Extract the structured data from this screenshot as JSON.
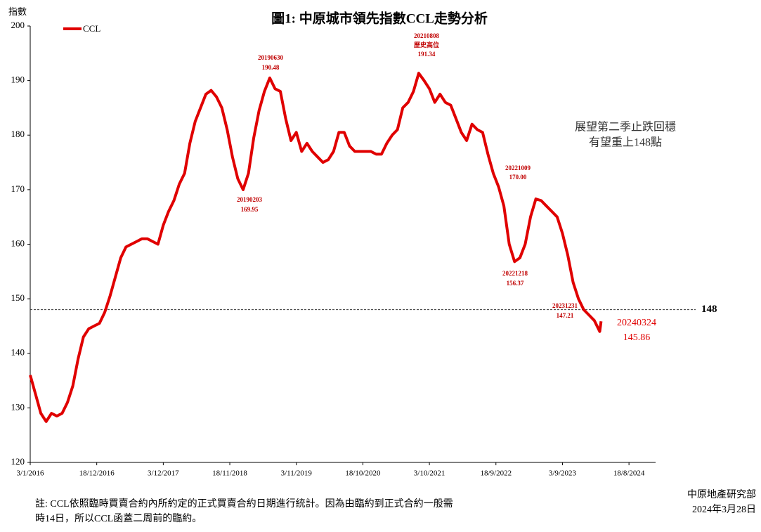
{
  "chart_data": {
    "type": "line",
    "title": "圖1: 中原城市領先指數CCL走勢分析",
    "y_label": "指數",
    "x": [
      "3/1/2016",
      "31/1/2016",
      "28/2/2016",
      "27/3/2016",
      "24/4/2016",
      "22/5/2016",
      "19/6/2016",
      "17/7/2016",
      "14/8/2016",
      "11/9/2016",
      "9/10/2016",
      "6/11/2016",
      "4/12/2016",
      "1/1/2017",
      "29/1/2017",
      "26/2/2017",
      "26/3/2017",
      "23/4/2017",
      "21/5/2017",
      "18/6/2017",
      "16/7/2017",
      "13/8/2017",
      "10/9/2017",
      "8/10/2017",
      "5/11/2017",
      "3/12/2017",
      "31/12/2017",
      "28/1/2018",
      "25/2/2018",
      "25/3/2018",
      "22/4/2018",
      "20/5/2018",
      "17/6/2018",
      "15/7/2018",
      "12/8/2018",
      "9/9/2018",
      "7/10/2018",
      "4/11/2018",
      "2/12/2018",
      "30/12/2018",
      "27/1/2019",
      "24/2/2019",
      "24/3/2019",
      "21/4/2019",
      "19/5/2019",
      "16/6/2019",
      "14/7/2019",
      "11/8/2019",
      "8/9/2019",
      "6/10/2019",
      "3/11/2019",
      "1/12/2019",
      "29/12/2019",
      "26/1/2020",
      "23/2/2020",
      "22/3/2020",
      "19/4/2020",
      "17/5/2020",
      "14/6/2020",
      "12/7/2020",
      "9/8/2020",
      "6/9/2020",
      "4/10/2020",
      "1/11/2020",
      "29/11/2020",
      "27/12/2020",
      "24/1/2021",
      "21/2/2021",
      "21/3/2021",
      "18/4/2021",
      "16/5/2021",
      "13/6/2021",
      "11/7/2021",
      "8/8/2021",
      "5/9/2021",
      "3/10/2021",
      "31/10/2021",
      "28/11/2021",
      "26/12/2021",
      "23/1/2022",
      "20/2/2022",
      "20/3/2022",
      "17/4/2022",
      "15/5/2022",
      "12/6/2022",
      "10/7/2022",
      "7/8/2022",
      "4/9/2022",
      "2/10/2022",
      "30/10/2022",
      "27/11/2022",
      "25/12/2022",
      "22/1/2023",
      "19/2/2023",
      "19/3/2023",
      "16/4/2023",
      "14/5/2023",
      "11/6/2023",
      "9/7/2023",
      "6/8/2023",
      "3/9/2023",
      "1/10/2023",
      "29/10/2023",
      "26/11/2023",
      "24/12/2023",
      "21/1/2024",
      "18/2/2024",
      "17/3/2024",
      "24/3/2024"
    ],
    "series": [
      {
        "name": "CCL",
        "color": "#e00000",
        "values": [
          136,
          132.5,
          129,
          127.5,
          129,
          128.5,
          129,
          131,
          134,
          139,
          143,
          144.5,
          145,
          145.5,
          147.5,
          150.5,
          154,
          157.5,
          159.5,
          160,
          160.5,
          161,
          161,
          160.5,
          160,
          163.5,
          166,
          168,
          171,
          173,
          178.5,
          182.5,
          185,
          187.5,
          188.2,
          187,
          185,
          181,
          176,
          172,
          170,
          173,
          179.5,
          184.5,
          188,
          190.48,
          188.5,
          188,
          183,
          179,
          180.5,
          177,
          178.5,
          177,
          176,
          175,
          175.5,
          177,
          180.5,
          180.5,
          178,
          177,
          177,
          177,
          177,
          176.5,
          176.5,
          178.5,
          180,
          181,
          185,
          186,
          188,
          191.34,
          190,
          188.5,
          186,
          187.5,
          186,
          185.5,
          183,
          180.5,
          179,
          182,
          181,
          180.5,
          176.5,
          173,
          170.5,
          167,
          160,
          156.8,
          157.5,
          160,
          165,
          168.3,
          168,
          167,
          166,
          165,
          162,
          158,
          153,
          150,
          148,
          147,
          146,
          144,
          145.86
        ]
      }
    ],
    "xlim": [
      "3/1/2016",
      "5/1/2025"
    ],
    "xticks": [
      "3/1/2016",
      "18/12/2016",
      "3/12/2017",
      "18/11/2018",
      "3/11/2019",
      "18/10/2020",
      "3/10/2021",
      "18/9/2022",
      "3/9/2023",
      "18/8/2024"
    ],
    "ylim": [
      120,
      200
    ],
    "yticks": [
      120,
      130,
      140,
      150,
      160,
      170,
      180,
      190,
      200
    ],
    "reference_line": 148,
    "annotations": [
      {
        "lines": [
          "20190203",
          "169.95"
        ]
      },
      {
        "lines": [
          "20190630",
          "190.48"
        ]
      },
      {
        "lines": [
          "20210808",
          "歷史高位",
          "191.34"
        ]
      },
      {
        "lines": [
          "20221009",
          "170.00"
        ]
      },
      {
        "lines": [
          "20221218",
          "156.37"
        ]
      },
      {
        "lines": [
          "20231231",
          "147.21"
        ]
      },
      {
        "lines": [
          "20240324",
          "145.86"
        ]
      },
      {
        "lines": [
          "展望第二季止跌回穩",
          "有望重上148點"
        ]
      }
    ],
    "footnote": [
      "註: CCL依照臨時買賣合約內所約定的正式買賣合約日期進行統計。因為由臨約到正式合約一般需",
      "時14日，所以CCL函蓋二周前的臨約。"
    ],
    "source": [
      "中原地產研究部",
      "2024年3月28日"
    ]
  }
}
